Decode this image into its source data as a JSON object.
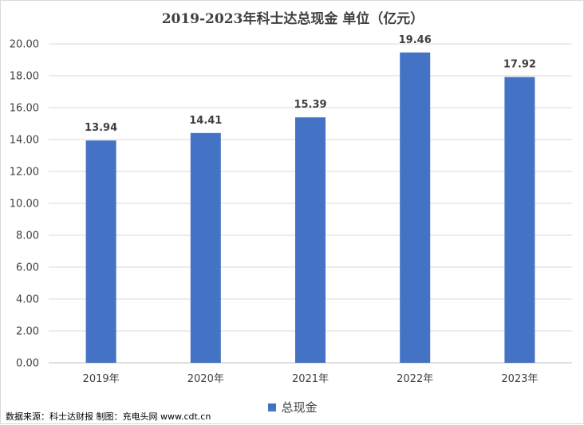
{
  "chart_data": {
    "type": "bar",
    "title": "2019-2023年科士达总现金  单位（亿元）",
    "categories": [
      "2019年",
      "2020年",
      "2021年",
      "2022年",
      "2023年"
    ],
    "series": [
      {
        "name": "总现金",
        "values": [
          13.94,
          14.41,
          15.39,
          19.46,
          17.92
        ],
        "color": "#4472c4"
      }
    ],
    "data_labels": [
      "13.94",
      "14.41",
      "15.39",
      "19.46",
      "17.92"
    ],
    "y_ticks": [
      "0.00",
      "2.00",
      "4.00",
      "6.00",
      "8.00",
      "10.00",
      "12.00",
      "14.00",
      "16.00",
      "18.00",
      "20.00"
    ],
    "ylim": [
      0,
      20
    ],
    "grid": true,
    "legend_position": "bottom"
  },
  "source_note": "数据来源：科士达财报  制图：充电头网 www.cdt.cn"
}
